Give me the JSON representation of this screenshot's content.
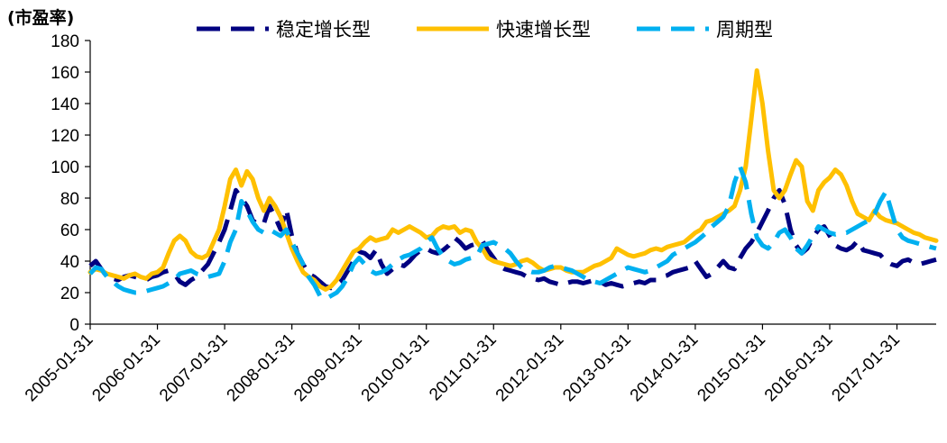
{
  "chart_data": {
    "type": "line",
    "ylabel": "(市盈率)",
    "ylim": [
      0,
      180
    ],
    "yticks": [
      0,
      20,
      40,
      60,
      80,
      100,
      120,
      140,
      160,
      180
    ],
    "x_tick_labels": [
      "2005-01-31",
      "2006-01-31",
      "2007-01-31",
      "2008-01-31",
      "2009-01-31",
      "2010-01-31",
      "2011-01-31",
      "2012-01-31",
      "2013-01-31",
      "2014-01-31",
      "2015-01-31",
      "2016-01-31",
      "2017-01-31"
    ],
    "x_unit": "month",
    "x_start": "2005-01-31",
    "legend_position": "top",
    "grid": false,
    "series": [
      {
        "name": "稳定增长型",
        "color": "#000080",
        "style": "dashed",
        "values": [
          37,
          40,
          35,
          30,
          29,
          28,
          30,
          31,
          30,
          29,
          28,
          30,
          31,
          33,
          34,
          32,
          27,
          25,
          28,
          30,
          34,
          38,
          45,
          52,
          60,
          72,
          85,
          80,
          75,
          66,
          63,
          64,
          75,
          68,
          60,
          73,
          56,
          45,
          38,
          32,
          30,
          27,
          24,
          23,
          25,
          28,
          34,
          40,
          46,
          45,
          42,
          47,
          38,
          32,
          35,
          38,
          37,
          40,
          44,
          47,
          48,
          46,
          45,
          47,
          50,
          55,
          52,
          48,
          50,
          51,
          53,
          47,
          42,
          37,
          35,
          34,
          33,
          32,
          30,
          29,
          28,
          29,
          27,
          26,
          25,
          26,
          27,
          27,
          26,
          27,
          28,
          27,
          25,
          26,
          25,
          24,
          25,
          26,
          27,
          26,
          28,
          28,
          30,
          31,
          33,
          34,
          35,
          36,
          40,
          35,
          30,
          32,
          36,
          40,
          36,
          35,
          42,
          48,
          52,
          58,
          65,
          72,
          80,
          85,
          76,
          60,
          50,
          45,
          48,
          55,
          60,
          62,
          56,
          50,
          48,
          47,
          49,
          53,
          47,
          46,
          45,
          44,
          40,
          38,
          37,
          40,
          41,
          39,
          38,
          39,
          40,
          41
        ]
      },
      {
        "name": "快速增长型",
        "color": "#FFC000",
        "style": "solid",
        "values": [
          33,
          35,
          34,
          32,
          31,
          30,
          29,
          31,
          32,
          30,
          29,
          32,
          33,
          36,
          45,
          53,
          56,
          53,
          46,
          43,
          42,
          44,
          52,
          60,
          75,
          92,
          98,
          88,
          97,
          92,
          80,
          72,
          80,
          75,
          68,
          58,
          48,
          40,
          33,
          30,
          28,
          24,
          22,
          24,
          28,
          34,
          40,
          46,
          48,
          52,
          55,
          53,
          54,
          55,
          60,
          58,
          60,
          62,
          60,
          58,
          55,
          56,
          60,
          62,
          61,
          62,
          58,
          60,
          59,
          52,
          48,
          42,
          40,
          39,
          38,
          37,
          38,
          40,
          41,
          39,
          36,
          34,
          35,
          36,
          36,
          34,
          33,
          33,
          33,
          35,
          37,
          38,
          40,
          42,
          48,
          46,
          44,
          43,
          44,
          45,
          47,
          48,
          47,
          49,
          50,
          51,
          52,
          55,
          58,
          60,
          65,
          66,
          68,
          70,
          72,
          75,
          85,
          100,
          130,
          161,
          140,
          110,
          85,
          80,
          85,
          95,
          104,
          100,
          78,
          72,
          85,
          90,
          93,
          98,
          95,
          88,
          78,
          70,
          68,
          66,
          72,
          68,
          66,
          65,
          64,
          62,
          60,
          58,
          57,
          55,
          54,
          53
        ]
      },
      {
        "name": "周期型",
        "color": "#00B0F0",
        "style": "dashed",
        "values": [
          32,
          36,
          35,
          30,
          27,
          24,
          22,
          21,
          20,
          20,
          21,
          22,
          23,
          24,
          26,
          28,
          32,
          33,
          34,
          32,
          31,
          30,
          31,
          32,
          40,
          52,
          60,
          78,
          72,
          65,
          60,
          58,
          60,
          58,
          56,
          60,
          52,
          45,
          38,
          30,
          25,
          18,
          16,
          18,
          20,
          24,
          30,
          38,
          42,
          38,
          34,
          32,
          33,
          35,
          38,
          41,
          43,
          44,
          46,
          48,
          52,
          55,
          48,
          43,
          40,
          38,
          39,
          41,
          42,
          43,
          50,
          51,
          52,
          50,
          48,
          45,
          40,
          36,
          34,
          33,
          33,
          34,
          36,
          37,
          36,
          35,
          34,
          32,
          30,
          28,
          27,
          26,
          28,
          30,
          32,
          34,
          36,
          35,
          34,
          33,
          34,
          36,
          38,
          40,
          44,
          46,
          48,
          50,
          52,
          55,
          58,
          62,
          65,
          68,
          75,
          90,
          100,
          90,
          70,
          55,
          50,
          48,
          52,
          58,
          60,
          55,
          48,
          45,
          50,
          56,
          62,
          60,
          58,
          57,
          58,
          58,
          60,
          62,
          64,
          66,
          70,
          78,
          84,
          72,
          60,
          55,
          53,
          52,
          51,
          50,
          49,
          48
        ]
      }
    ]
  }
}
